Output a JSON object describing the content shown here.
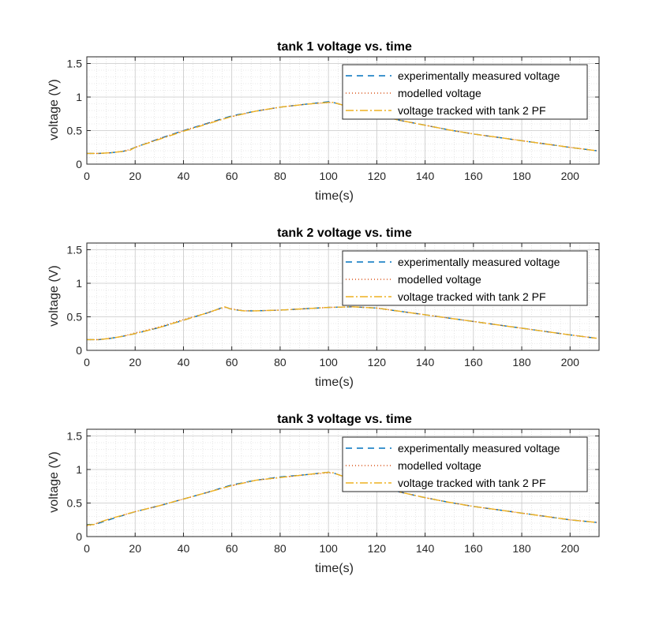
{
  "chart_data": [
    {
      "type": "line",
      "title": "tank 1 voltage vs. time",
      "xlabel": "time(s)",
      "ylabel": "voltage (V)",
      "xlim": [
        0,
        212
      ],
      "ylim": [
        0,
        1.6
      ],
      "xticks": [
        0,
        20,
        40,
        60,
        80,
        100,
        120,
        140,
        160,
        180,
        200
      ],
      "yticks": [
        0,
        0.5,
        1,
        1.5
      ],
      "ytick_labels": [
        "0",
        "0.5",
        "1",
        "1.5"
      ],
      "grid": true,
      "minor_grid": true,
      "legend_position": "top-right",
      "x": [
        0,
        5,
        10,
        15,
        18,
        20,
        30,
        40,
        50,
        60,
        70,
        80,
        90,
        100,
        102,
        110,
        120,
        130,
        140,
        150,
        160,
        170,
        180,
        190,
        200,
        211
      ],
      "series": [
        {
          "name": "experimentally measured voltage",
          "color": "#0072BD",
          "dash": "8,6",
          "values": [
            0.16,
            0.16,
            0.17,
            0.19,
            0.22,
            0.25,
            0.38,
            0.5,
            0.61,
            0.72,
            0.79,
            0.85,
            0.89,
            0.93,
            0.92,
            0.84,
            0.73,
            0.65,
            0.58,
            0.51,
            0.45,
            0.4,
            0.35,
            0.3,
            0.25,
            0.2
          ]
        },
        {
          "name": "modelled voltage",
          "color": "#D95319",
          "dash": "1,3",
          "values": [
            0.16,
            0.16,
            0.17,
            0.19,
            0.22,
            0.25,
            0.38,
            0.5,
            0.61,
            0.71,
            0.79,
            0.85,
            0.89,
            0.92,
            0.92,
            0.84,
            0.73,
            0.65,
            0.58,
            0.51,
            0.45,
            0.4,
            0.35,
            0.3,
            0.25,
            0.2
          ]
        },
        {
          "name": "voltage tracked with tank 2 PF",
          "color": "#EDB120",
          "dash": "10,3,2,3",
          "values": [
            0.16,
            0.16,
            0.17,
            0.19,
            0.21,
            0.25,
            0.37,
            0.49,
            0.6,
            0.71,
            0.79,
            0.85,
            0.89,
            0.92,
            0.92,
            0.84,
            0.73,
            0.65,
            0.58,
            0.51,
            0.45,
            0.4,
            0.35,
            0.3,
            0.25,
            0.2
          ]
        }
      ]
    },
    {
      "type": "line",
      "title": "tank 2 voltage vs. time",
      "xlabel": "time(s)",
      "ylabel": "voltage (V)",
      "xlim": [
        0,
        212
      ],
      "ylim": [
        0,
        1.6
      ],
      "xticks": [
        0,
        20,
        40,
        60,
        80,
        100,
        120,
        140,
        160,
        180,
        200
      ],
      "yticks": [
        0,
        0.5,
        1,
        1.5
      ],
      "ytick_labels": [
        "0",
        "0.5",
        "1",
        "1.5"
      ],
      "grid": true,
      "minor_grid": true,
      "legend_position": "top-right",
      "x": [
        0,
        5,
        10,
        15,
        20,
        30,
        40,
        50,
        57,
        60,
        65,
        70,
        80,
        90,
        100,
        110,
        120,
        130,
        140,
        150,
        160,
        170,
        180,
        190,
        200,
        211
      ],
      "series": [
        {
          "name": "experimentally measured voltage",
          "color": "#0072BD",
          "dash": "8,6",
          "values": [
            0.16,
            0.16,
            0.18,
            0.21,
            0.25,
            0.34,
            0.45,
            0.56,
            0.65,
            0.61,
            0.59,
            0.59,
            0.6,
            0.62,
            0.64,
            0.65,
            0.63,
            0.58,
            0.53,
            0.48,
            0.43,
            0.38,
            0.33,
            0.28,
            0.23,
            0.18
          ]
        },
        {
          "name": "modelled voltage",
          "color": "#D95319",
          "dash": "1,3",
          "values": [
            0.16,
            0.16,
            0.18,
            0.21,
            0.26,
            0.35,
            0.46,
            0.56,
            0.64,
            0.62,
            0.59,
            0.59,
            0.6,
            0.62,
            0.64,
            0.65,
            0.63,
            0.58,
            0.53,
            0.48,
            0.43,
            0.38,
            0.33,
            0.28,
            0.23,
            0.18
          ]
        },
        {
          "name": "voltage tracked with tank 2 PF",
          "color": "#EDB120",
          "dash": "10,3,2,3",
          "values": [
            0.16,
            0.16,
            0.18,
            0.21,
            0.25,
            0.34,
            0.45,
            0.56,
            0.65,
            0.61,
            0.59,
            0.59,
            0.6,
            0.62,
            0.64,
            0.65,
            0.63,
            0.58,
            0.53,
            0.48,
            0.43,
            0.38,
            0.33,
            0.28,
            0.23,
            0.18
          ]
        }
      ]
    },
    {
      "type": "line",
      "title": "tank 3 voltage vs. time",
      "xlabel": "time(s)",
      "ylabel": "voltage (V)",
      "xlim": [
        0,
        212
      ],
      "ylim": [
        0,
        1.6
      ],
      "xticks": [
        0,
        20,
        40,
        60,
        80,
        100,
        120,
        140,
        160,
        180,
        200
      ],
      "yticks": [
        0,
        0.5,
        1,
        1.5
      ],
      "ytick_labels": [
        "0",
        "0.5",
        "1",
        "1.5"
      ],
      "grid": true,
      "minor_grid": true,
      "legend_position": "top-right",
      "x": [
        0,
        3,
        5,
        10,
        20,
        30,
        40,
        50,
        60,
        70,
        80,
        90,
        100,
        102,
        110,
        120,
        130,
        140,
        150,
        160,
        170,
        180,
        190,
        200,
        211
      ],
      "series": [
        {
          "name": "experimentally measured voltage",
          "color": "#0072BD",
          "dash": "8,6",
          "values": [
            0.18,
            0.18,
            0.2,
            0.26,
            0.37,
            0.46,
            0.56,
            0.66,
            0.77,
            0.84,
            0.89,
            0.92,
            0.96,
            0.95,
            0.85,
            0.75,
            0.66,
            0.58,
            0.51,
            0.45,
            0.4,
            0.35,
            0.3,
            0.25,
            0.21
          ]
        },
        {
          "name": "modelled voltage",
          "color": "#D95319",
          "dash": "1,3",
          "values": [
            0.16,
            0.18,
            0.21,
            0.27,
            0.37,
            0.46,
            0.56,
            0.66,
            0.76,
            0.84,
            0.88,
            0.92,
            0.95,
            0.95,
            0.85,
            0.75,
            0.66,
            0.58,
            0.51,
            0.45,
            0.4,
            0.35,
            0.3,
            0.25,
            0.21
          ]
        },
        {
          "name": "voltage tracked with tank 2 PF",
          "color": "#EDB120",
          "dash": "10,3,2,3",
          "values": [
            0.17,
            0.18,
            0.21,
            0.27,
            0.37,
            0.46,
            0.56,
            0.66,
            0.76,
            0.84,
            0.88,
            0.92,
            0.96,
            0.95,
            0.85,
            0.75,
            0.66,
            0.58,
            0.51,
            0.45,
            0.4,
            0.35,
            0.3,
            0.25,
            0.21
          ]
        }
      ]
    }
  ]
}
